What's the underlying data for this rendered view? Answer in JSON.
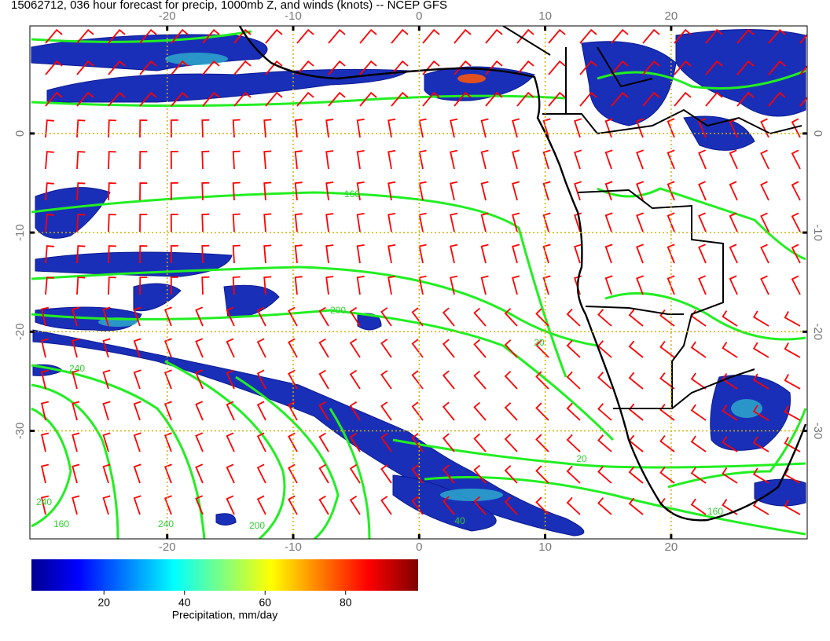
{
  "title": "15062712, 036 hour forecast for precip, 1000mb Z, and winds (knots) -- NCEP GFS",
  "map": {
    "type": "map",
    "lonlim": [
      -30.9,
      30.8
    ],
    "latlim": [
      -40.9,
      10.85
    ],
    "lon_ticks": [
      -20,
      -10,
      0,
      10,
      20
    ],
    "lat_ticks": [
      0,
      -10,
      -20,
      -30
    ],
    "grid": true
  },
  "colorbar": {
    "label": "Precipitation, mm/day",
    "lim": [
      2,
      98
    ],
    "ticks": [
      20,
      40,
      60,
      80
    ]
  },
  "contour_labels": [
    "160",
    "200",
    "240",
    "240",
    "160",
    "240",
    "200",
    "40",
    "20",
    "160",
    "20"
  ]
}
